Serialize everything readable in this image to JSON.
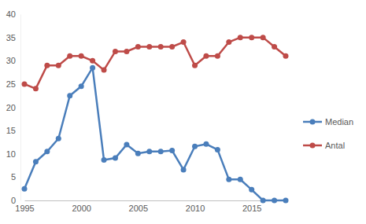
{
  "chart_data": {
    "type": "line",
    "x": [
      1995,
      1996,
      1997,
      1998,
      1999,
      2000,
      2001,
      2002,
      2003,
      2004,
      2005,
      2006,
      2007,
      2008,
      2009,
      2010,
      2011,
      2012,
      2013,
      2014,
      2015,
      2016,
      2017,
      2018
    ],
    "series": [
      {
        "name": "Median",
        "color": "#4a7ebb",
        "values": [
          2.5,
          8.3,
          10.5,
          13.3,
          22.5,
          24.5,
          28.5,
          8.7,
          9.1,
          12,
          10.1,
          10.5,
          10.5,
          10.7,
          6.6,
          11.6,
          12.1,
          10.9,
          4.5,
          4.5,
          2.3,
          0,
          0,
          0
        ]
      },
      {
        "name": "Antal",
        "color": "#be4b48",
        "values": [
          25,
          24,
          29,
          29,
          31,
          31,
          30,
          28,
          32,
          32,
          33,
          33,
          33,
          33,
          34,
          29,
          31,
          31,
          34,
          35,
          35,
          35,
          33,
          31
        ]
      }
    ],
    "xlim": [
      1995,
      2018
    ],
    "xticks": [
      1995,
      2000,
      2005,
      2010,
      2015
    ],
    "ylim": [
      0,
      40
    ],
    "yticks": [
      0,
      5,
      10,
      15,
      20,
      25,
      30,
      35,
      40
    ],
    "grid": false,
    "legend": "right",
    "marker": "circle",
    "line_style": "solid"
  }
}
